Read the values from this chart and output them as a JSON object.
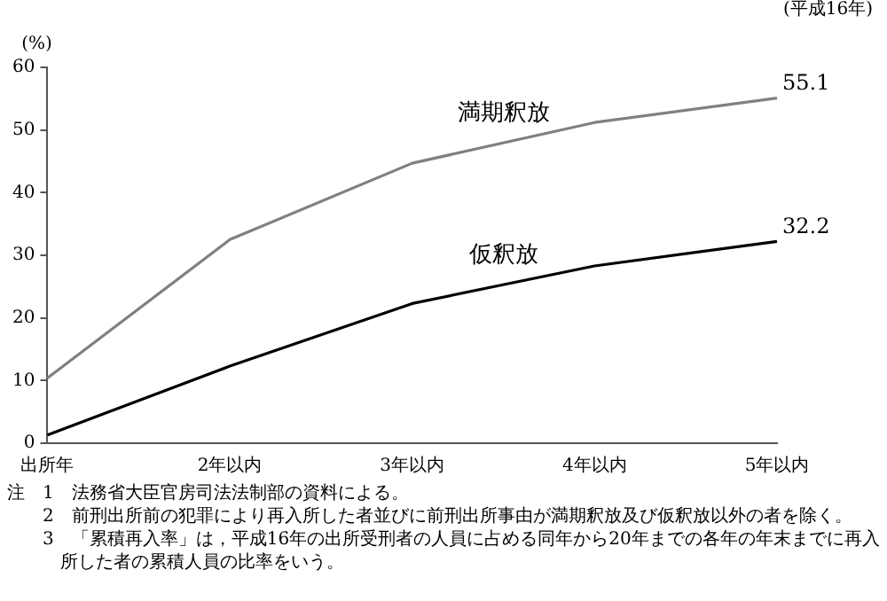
{
  "chart_data": {
    "type": "line",
    "ylabel": "(%)",
    "categories": [
      "出所年",
      "2年以内",
      "3年以内",
      "4年以内",
      "5年以内"
    ],
    "series": [
      {
        "name": "満期釈放",
        "color": "#808080",
        "values": [
          10.4,
          32.5,
          44.7,
          51.2,
          55.1
        ],
        "value_labels": [
          null,
          null,
          null,
          null,
          "55.1"
        ]
      },
      {
        "name": "仮釈放",
        "color": "#000000",
        "values": [
          1.3,
          12.3,
          22.3,
          28.3,
          32.2
        ],
        "value_labels": [
          null,
          null,
          null,
          null,
          "32.2"
        ]
      }
    ],
    "ylim": [
      0,
      60
    ],
    "yticks": [
      0,
      10,
      20,
      30,
      40,
      50,
      60
    ],
    "grid": false,
    "legend": false,
    "marker": "none",
    "line_style": "solid",
    "annotations": [
      "(平成16年)",
      "注　1　法務省大臣官房司法法制部の資料による。",
      "2　前刑出所前の犯罪により再入所した者並びに前刑出所事由が満期釈放及び仮釈放以外の者を除く。",
      "3　「累積再入率」は，平成16年の出所受刑者の人員に占める同年から20年までの各年の年末までに再入所した者の累積人員の比率をいう。"
    ]
  }
}
